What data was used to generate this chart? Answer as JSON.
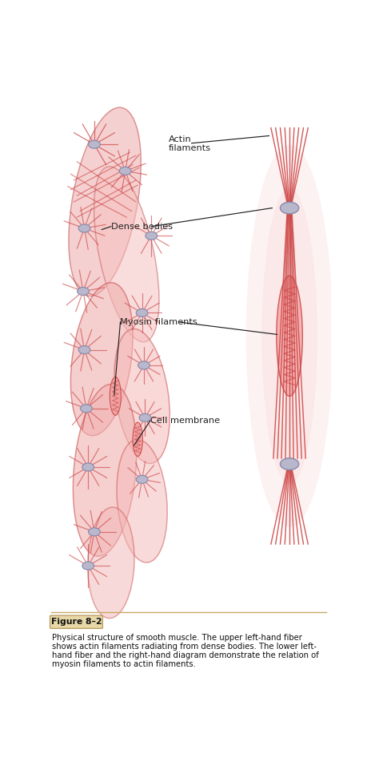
{
  "background_color": "#ffffff",
  "fig_label": "Figure 8–2",
  "caption_line1": "Physical structure of smooth muscle. The upper left-hand fiber",
  "caption_line2": "shows actin filaments radiating from dense bodies. The lower left-",
  "caption_line3": "hand fiber and the right-hand diagram demonstrate the relation of",
  "caption_line4": "myosin filaments to actin filaments.",
  "label_actin": "Actin\nfilaments",
  "label_dense": "Dense bodies",
  "label_myosin": "Myosin filaments",
  "label_membrane": "Cell membrane",
  "pink_cell": "#f2aaaa",
  "pink_cell2": "#f5baba",
  "pink_cell3": "#f0c0c0",
  "pink_glow": "#fae0e0",
  "pink_glow2": "#fceaea",
  "gray_body": "#b8b7cc",
  "line_color": "#cc4444",
  "ann_color": "#222222",
  "fig_box_fill": "#e8d8a8",
  "fig_box_edge": "#b89858",
  "separator_color": "#c8a868"
}
